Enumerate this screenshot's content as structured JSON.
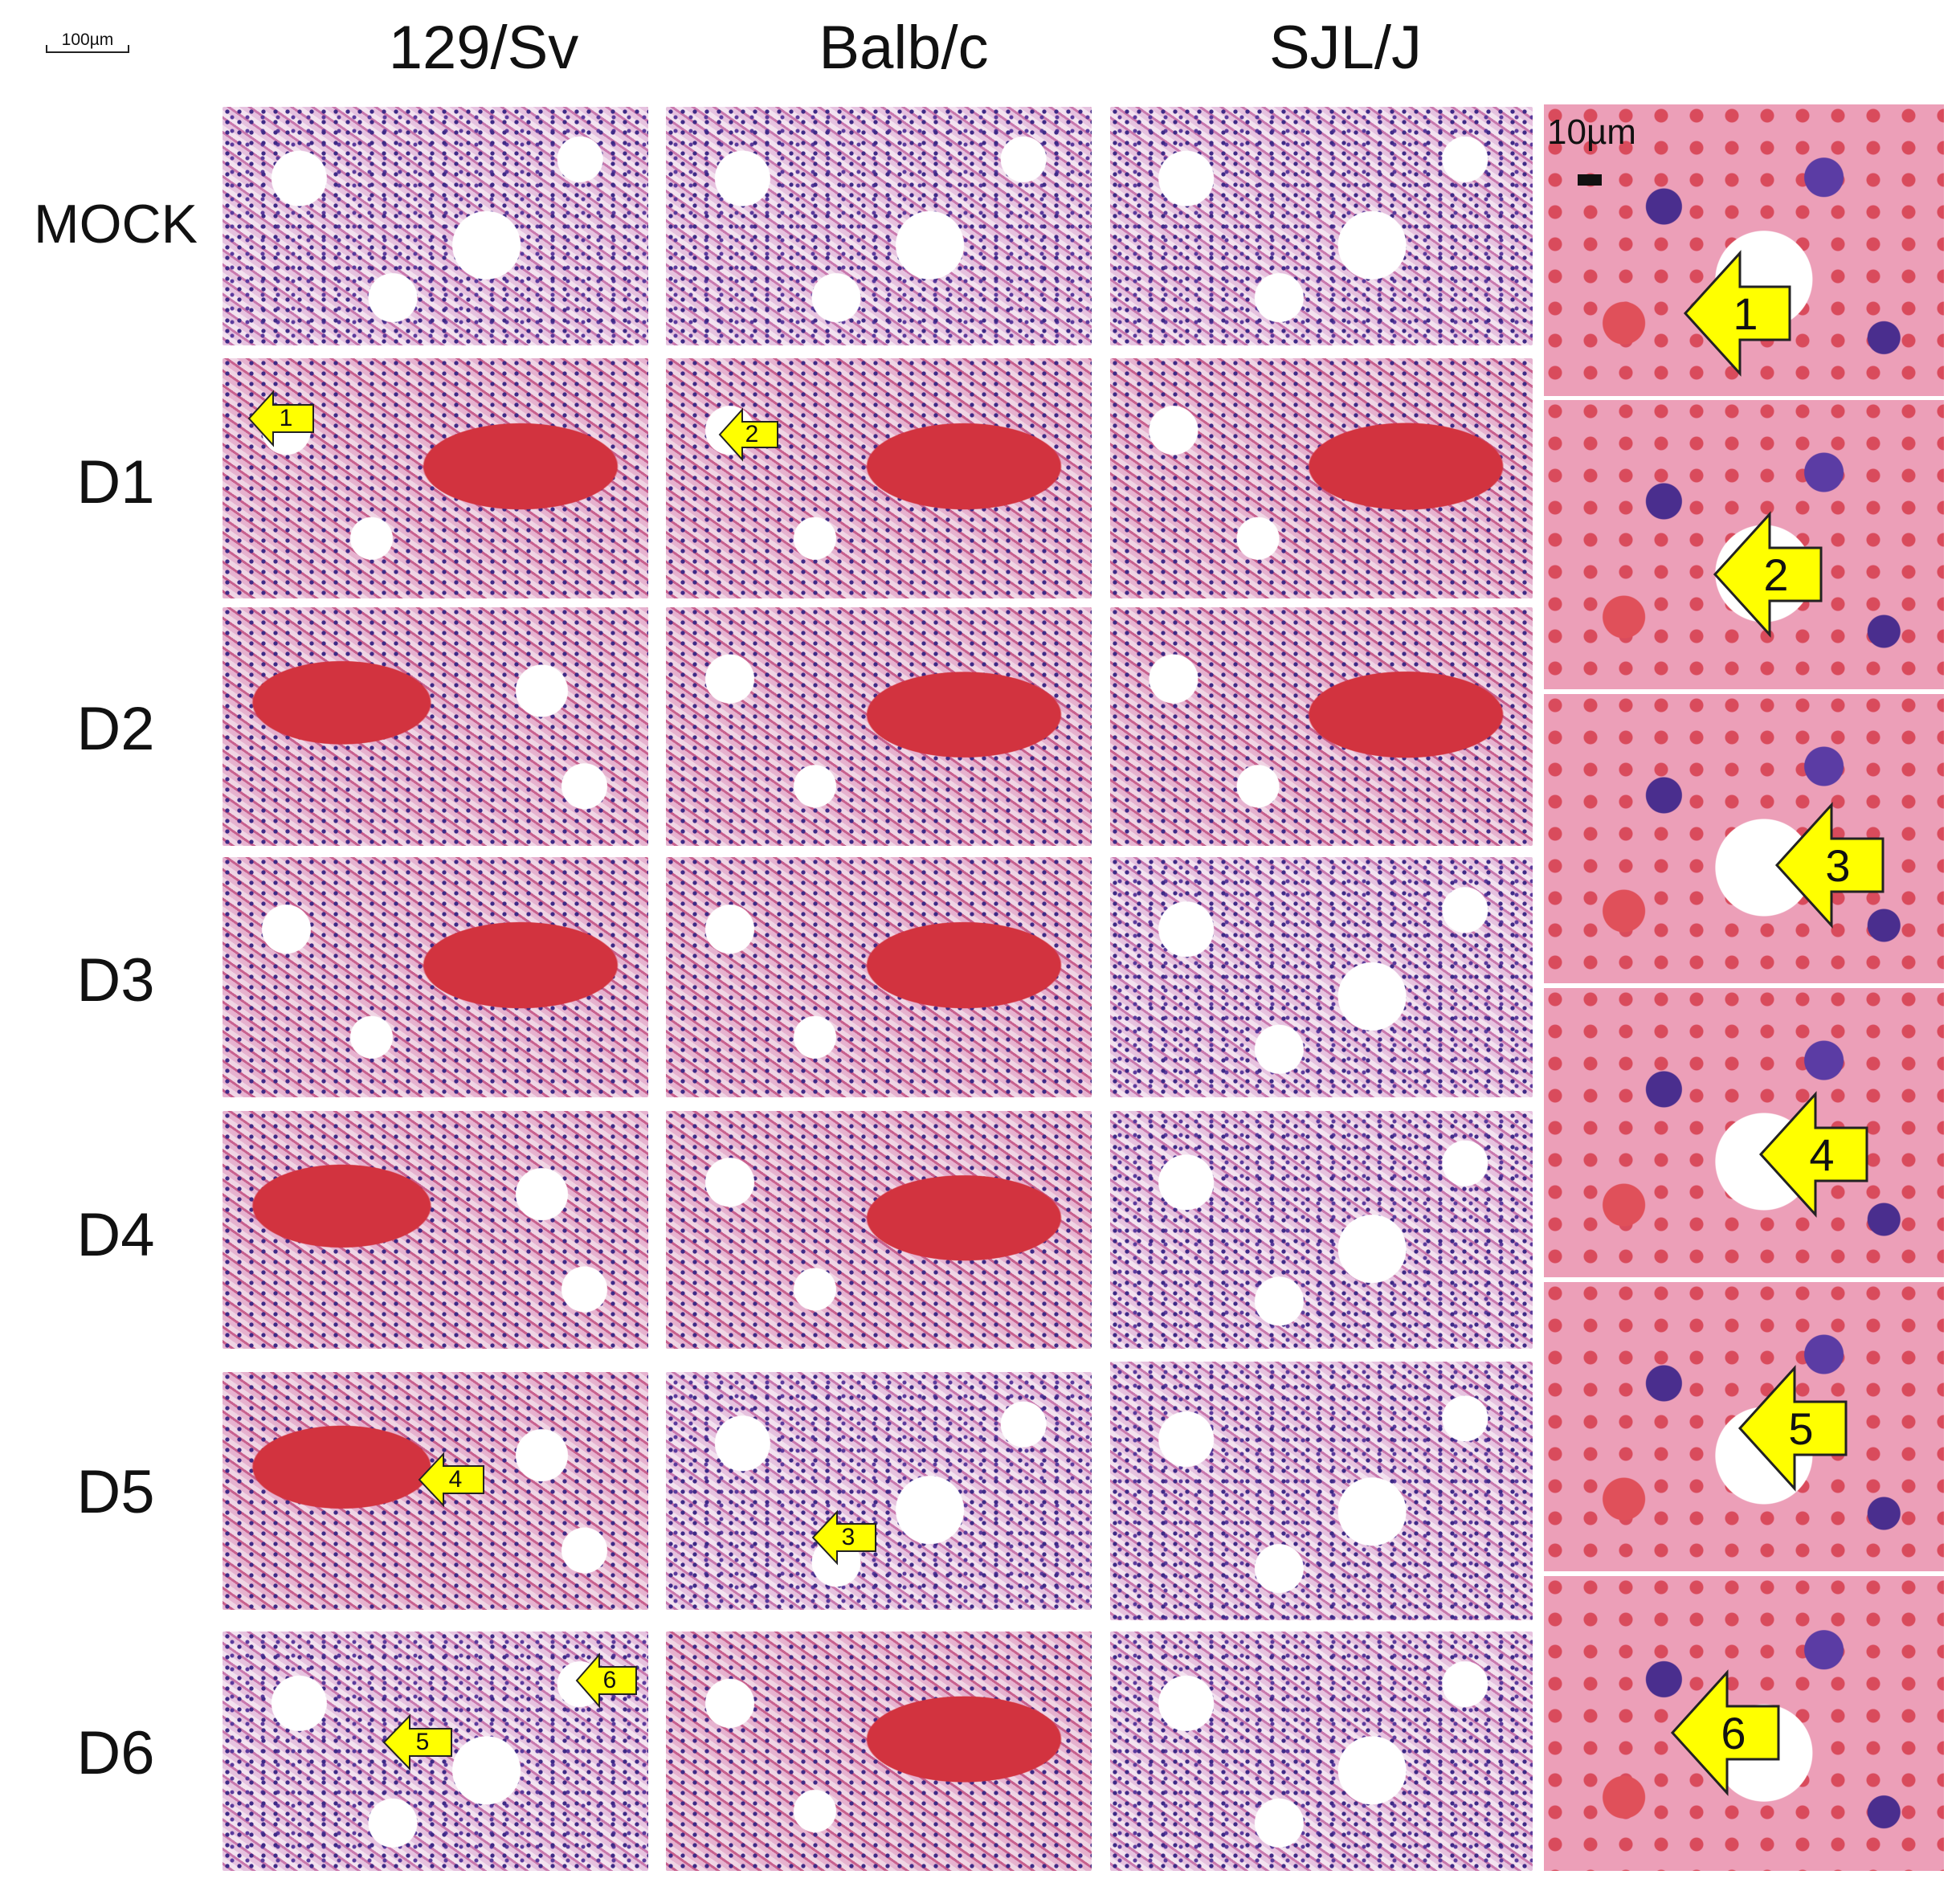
{
  "scale_bar_main": {
    "label": "100µm"
  },
  "scale_bar_zoom": {
    "label": "10µm"
  },
  "columns": [
    "129/Sv",
    "Balb/c",
    "SJL/J"
  ],
  "rows": [
    "MOCK",
    "D1",
    "D2",
    "D3",
    "D4",
    "D5",
    "D6"
  ],
  "panel_arrows": [
    "1",
    "2",
    "3",
    "4",
    "5",
    "6"
  ],
  "zoom_arrows": [
    "1",
    "2",
    "3",
    "4",
    "5",
    "6"
  ],
  "colors": {
    "arrow_fill": "#ffff00",
    "arrow_stroke": "#222222"
  }
}
